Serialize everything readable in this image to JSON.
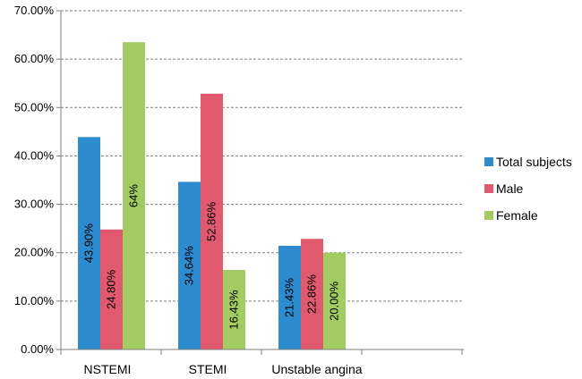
{
  "chart_data": {
    "type": "bar",
    "categories": [
      "NSTEMI",
      "STEMI",
      "Unstable angina"
    ],
    "series": [
      {
        "name": "Total subjects",
        "values": [
          43.9,
          34.64,
          21.43
        ],
        "labels": [
          "43.90%",
          "34.64%",
          "21.43%"
        ],
        "color": "#2E8BCF"
      },
      {
        "name": "Male",
        "values": [
          24.8,
          52.86,
          22.86
        ],
        "labels": [
          "24.80%",
          "52.86%",
          "22.86%"
        ],
        "color": "#E0596D"
      },
      {
        "name": "Female",
        "values": [
          63.5,
          16.43,
          20.0
        ],
        "labels": [
          "64%",
          "16.43%",
          "20.00%"
        ],
        "color": "#A2CB62"
      }
    ],
    "yticks": [
      "0.00%",
      "10.00%",
      "20.00%",
      "30.00%",
      "40.00%",
      "50.00%",
      "60.00%",
      "70.00%"
    ],
    "ylim": [
      0,
      70
    ],
    "grid": true,
    "legend": "right"
  }
}
